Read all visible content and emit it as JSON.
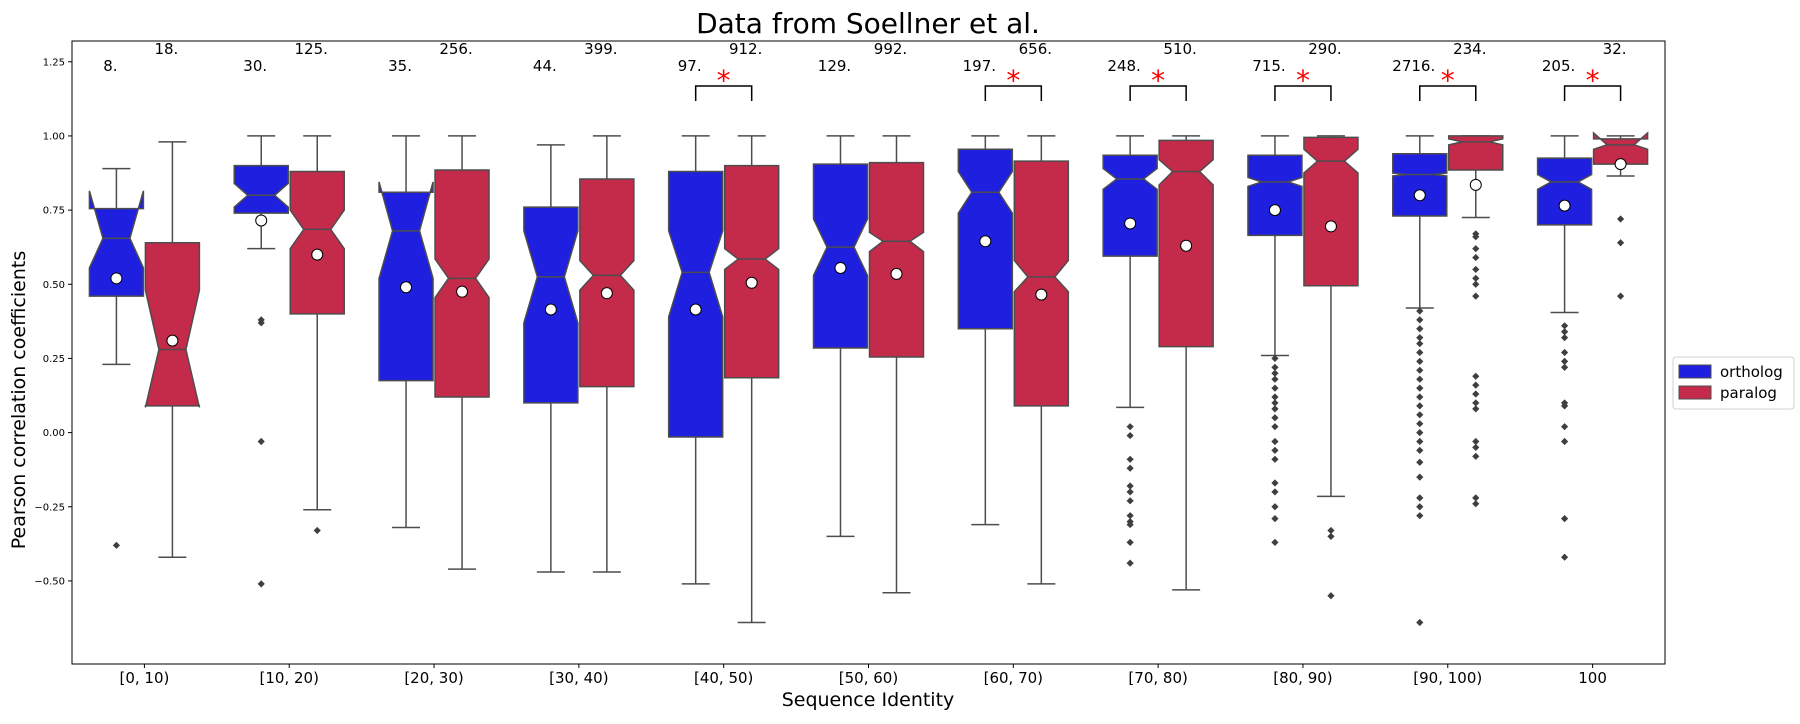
{
  "chart_data": {
    "type": "box",
    "title": "Data from Soellner et al.",
    "xlabel": "Sequence Identity",
    "ylabel": "Pearson correlation coefficients",
    "ylim": [
      -0.78,
      1.32
    ],
    "yticks": [
      -0.5,
      -0.25,
      0.0,
      0.25,
      0.5,
      0.75,
      1.0,
      1.25
    ],
    "ytick_labels": [
      "−0.50",
      "−0.25",
      "0.00",
      "0.25",
      "0.50",
      "0.75",
      "1.00",
      "1.25"
    ],
    "categories": [
      "[0, 10)",
      "[10, 20)",
      "[20, 30)",
      "[30, 40)",
      "[40, 50)",
      "[50, 60)",
      "[60, 70)",
      "[70, 80)",
      "[80, 90)",
      "[90, 100)",
      "100"
    ],
    "legend": {
      "position": "right"
    },
    "colors": {
      "ortholog": "#1f1fe0",
      "paralog": "#c42a4a",
      "significance": "#ff0000",
      "edge": "#4d4d4d"
    },
    "significance_marker": "*",
    "significant_categories": [
      "[40, 50)",
      "[60, 70)",
      "[70, 80)",
      "[80, 90)",
      "[90, 100)",
      "100"
    ],
    "series": [
      {
        "name": "ortholog",
        "counts": [
          "8.",
          "30.",
          "35.",
          "44.",
          "97.",
          "129.",
          "197.",
          "248.",
          "715.",
          "2716.",
          "205."
        ],
        "boxes": [
          {
            "whislo": 0.23,
            "q1": 0.46,
            "med": 0.655,
            "q3": 0.755,
            "whishi": 0.89,
            "mean": 0.52,
            "notch": [
              0.555,
              0.815
            ],
            "fliers": [
              -0.38
            ]
          },
          {
            "whislo": 0.62,
            "q1": 0.74,
            "med": 0.8,
            "q3": 0.9,
            "whishi": 1.0,
            "mean": 0.715,
            "notch": [
              0.76,
              0.84
            ],
            "fliers": [
              0.38,
              0.37,
              -0.03,
              -0.51
            ]
          },
          {
            "whislo": -0.32,
            "q1": 0.175,
            "med": 0.68,
            "q3": 0.81,
            "whishi": 1.0,
            "mean": 0.49,
            "notch": [
              0.52,
              0.845
            ],
            "fliers": []
          },
          {
            "whislo": -0.47,
            "q1": 0.1,
            "med": 0.525,
            "q3": 0.76,
            "whishi": 0.97,
            "mean": 0.415,
            "notch": [
              0.37,
              0.68
            ],
            "fliers": []
          },
          {
            "whislo": -0.51,
            "q1": -0.015,
            "med": 0.54,
            "q3": 0.88,
            "whishi": 1.0,
            "mean": 0.415,
            "notch": [
              0.39,
              0.68
            ],
            "fliers": []
          },
          {
            "whislo": -0.35,
            "q1": 0.285,
            "med": 0.625,
            "q3": 0.905,
            "whishi": 1.0,
            "mean": 0.555,
            "notch": [
              0.53,
              0.72
            ],
            "fliers": []
          },
          {
            "whislo": -0.31,
            "q1": 0.35,
            "med": 0.81,
            "q3": 0.955,
            "whishi": 1.0,
            "mean": 0.645,
            "notch": [
              0.74,
              0.88
            ],
            "fliers": []
          },
          {
            "whislo": 0.085,
            "q1": 0.595,
            "med": 0.855,
            "q3": 0.935,
            "whishi": 1.0,
            "mean": 0.705,
            "notch": [
              0.82,
              0.89
            ],
            "fliers": [
              0.02,
              -0.01,
              -0.09,
              -0.12,
              -0.18,
              -0.2,
              -0.23,
              -0.28,
              -0.3,
              -0.31,
              -0.37,
              -0.44
            ]
          },
          {
            "whislo": 0.26,
            "q1": 0.665,
            "med": 0.845,
            "q3": 0.935,
            "whishi": 1.0,
            "mean": 0.75,
            "notch": [
              0.83,
              0.86
            ],
            "fliers": [
              0.25,
              0.22,
              0.2,
              0.18,
              0.15,
              0.12,
              0.1,
              0.08,
              0.05,
              0.02,
              -0.03,
              -0.06,
              -0.09,
              -0.17,
              -0.2,
              -0.25,
              -0.29,
              -0.37
            ]
          },
          {
            "whislo": 0.42,
            "q1": 0.73,
            "med": 0.87,
            "q3": 0.94,
            "whishi": 1.0,
            "mean": 0.8,
            "notch": [
              0.865,
              0.875
            ],
            "fliers": [
              0.41,
              0.38,
              0.35,
              0.32,
              0.3,
              0.27,
              0.24,
              0.21,
              0.18,
              0.15,
              0.12,
              0.09,
              0.06,
              0.03,
              0.0,
              -0.03,
              -0.06,
              -0.1,
              -0.15,
              -0.22,
              -0.25,
              -0.28,
              -0.64
            ]
          },
          {
            "whislo": 0.405,
            "q1": 0.7,
            "med": 0.845,
            "q3": 0.925,
            "whishi": 1.0,
            "mean": 0.765,
            "notch": [
              0.82,
              0.87
            ],
            "fliers": [
              0.36,
              0.34,
              0.32,
              0.27,
              0.24,
              0.22,
              0.1,
              0.09,
              0.02,
              -0.03,
              -0.29,
              -0.42
            ]
          }
        ]
      },
      {
        "name": "paralog",
        "counts": [
          "18.",
          "125.",
          "256.",
          "399.",
          "912.",
          "992.",
          "656.",
          "510.",
          "290.",
          "234.",
          "32."
        ],
        "boxes": [
          {
            "whislo": -0.42,
            "q1": 0.09,
            "med": 0.28,
            "q3": 0.64,
            "whishi": 0.98,
            "mean": 0.31,
            "notch": [
              0.085,
              0.48
            ],
            "fliers": []
          },
          {
            "whislo": -0.26,
            "q1": 0.4,
            "med": 0.685,
            "q3": 0.88,
            "whishi": 1.0,
            "mean": 0.6,
            "notch": [
              0.62,
              0.75
            ],
            "fliers": [
              -0.33
            ]
          },
          {
            "whislo": -0.46,
            "q1": 0.12,
            "med": 0.52,
            "q3": 0.885,
            "whishi": 1.0,
            "mean": 0.475,
            "notch": [
              0.455,
              0.585
            ],
            "fliers": []
          },
          {
            "whislo": -0.47,
            "q1": 0.155,
            "med": 0.53,
            "q3": 0.855,
            "whishi": 1.0,
            "mean": 0.47,
            "notch": [
              0.48,
              0.58
            ],
            "fliers": []
          },
          {
            "whislo": -0.64,
            "q1": 0.185,
            "med": 0.585,
            "q3": 0.9,
            "whishi": 1.0,
            "mean": 0.505,
            "notch": [
              0.55,
              0.62
            ],
            "fliers": []
          },
          {
            "whislo": -0.54,
            "q1": 0.255,
            "med": 0.645,
            "q3": 0.91,
            "whishi": 1.0,
            "mean": 0.535,
            "notch": [
              0.61,
              0.675
            ],
            "fliers": []
          },
          {
            "whislo": -0.51,
            "q1": 0.09,
            "med": 0.525,
            "q3": 0.915,
            "whishi": 1.0,
            "mean": 0.465,
            "notch": [
              0.475,
              0.58
            ],
            "fliers": []
          },
          {
            "whislo": -0.53,
            "q1": 0.29,
            "med": 0.88,
            "q3": 0.985,
            "whishi": 1.0,
            "mean": 0.63,
            "notch": [
              0.835,
              0.92
            ],
            "fliers": []
          },
          {
            "whislo": -0.215,
            "q1": 0.495,
            "med": 0.915,
            "q3": 0.995,
            "whishi": 1.0,
            "mean": 0.695,
            "notch": [
              0.875,
              0.955
            ],
            "fliers": [
              -0.33,
              -0.35,
              -0.55
            ]
          },
          {
            "whislo": 0.725,
            "q1": 0.885,
            "med": 0.98,
            "q3": 1.0,
            "whishi": 1.0,
            "mean": 0.835,
            "notch": [
              0.97,
              0.99
            ],
            "fliers": [
              0.67,
              0.66,
              0.62,
              0.59,
              0.55,
              0.52,
              0.5,
              0.46,
              0.19,
              0.16,
              0.13,
              0.1,
              0.08,
              -0.03,
              -0.05,
              -0.08,
              -0.22,
              -0.24
            ]
          },
          {
            "whislo": 0.865,
            "q1": 0.905,
            "med": 0.97,
            "q3": 0.99,
            "whishi": 1.0,
            "mean": 0.905,
            "notch": [
              0.955,
              1.01
            ],
            "fliers": [
              0.72,
              0.64,
              0.46
            ]
          }
        ]
      }
    ]
  }
}
